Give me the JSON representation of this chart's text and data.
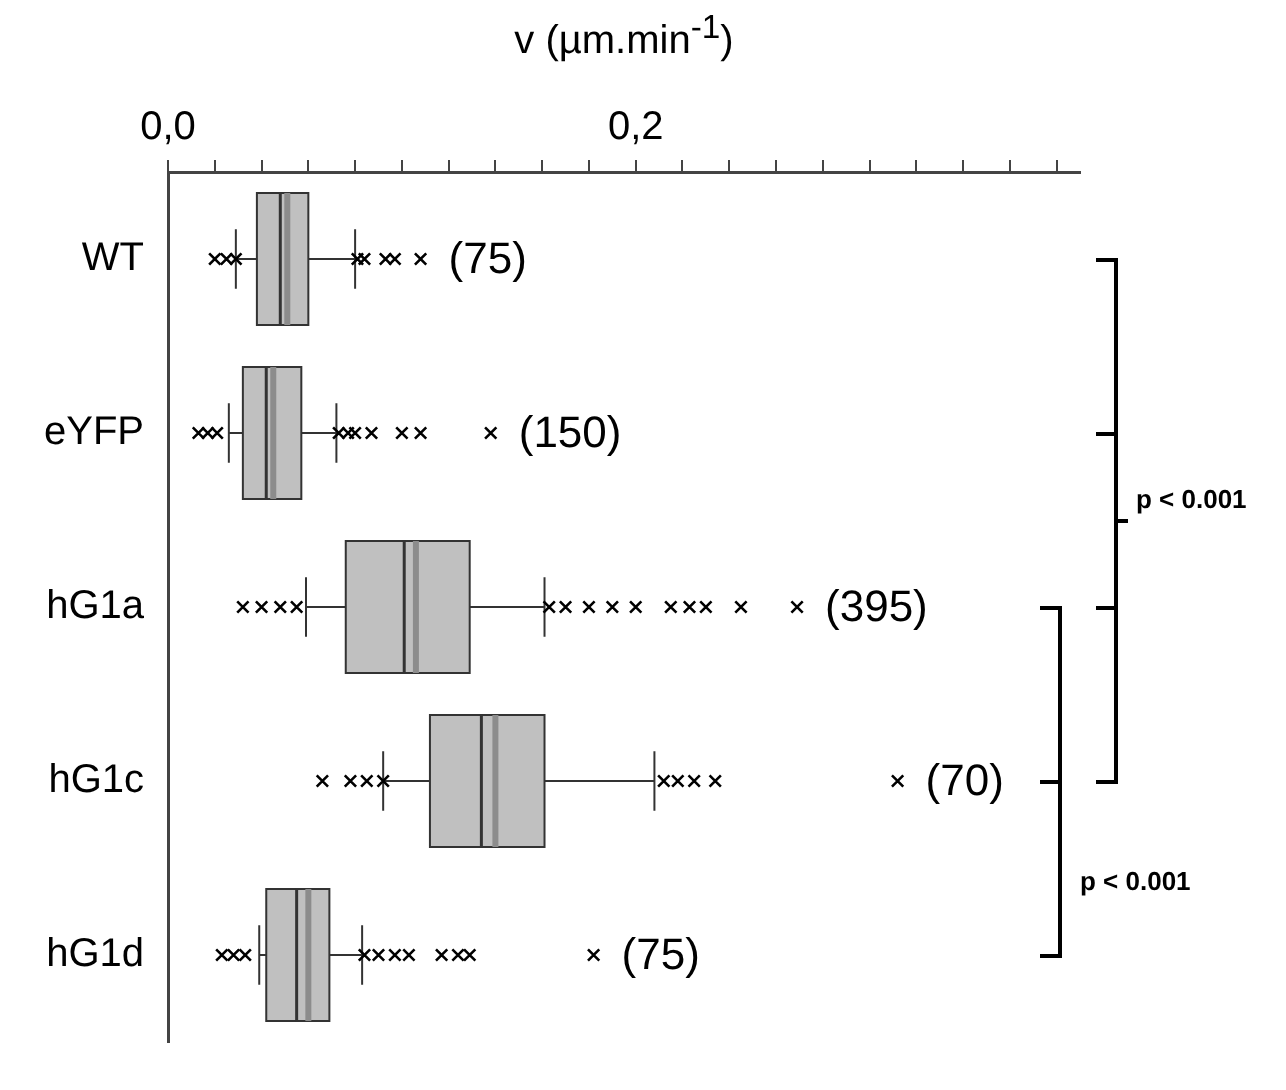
{
  "chart_data": {
    "type": "box",
    "orientation": "horizontal",
    "xlabel": "v (µm.min$^{-1}$)",
    "categories": [
      "WT",
      "eYFP",
      "hG1a",
      "hG1c",
      "hG1d"
    ],
    "color": "#c0c0c0",
    "marker": "cross",
    "grid": false,
    "legend": false,
    "xlim": [
      0,
      0.39
    ],
    "xticks": [
      {
        "value": 0,
        "label": "0,0"
      },
      {
        "value": 0.02,
        "label": null
      },
      {
        "value": 0.04,
        "label": null
      },
      {
        "value": 0.06,
        "label": null
      },
      {
        "value": 0.08,
        "label": null
      },
      {
        "value": 0.1,
        "label": null
      },
      {
        "value": 0.12,
        "label": null
      },
      {
        "value": 0.14,
        "label": null
      },
      {
        "value": 0.16,
        "label": null
      },
      {
        "value": 0.18,
        "label": null
      },
      {
        "value": 0.2,
        "label": "0,2"
      },
      {
        "value": 0.22,
        "label": null
      },
      {
        "value": 0.24,
        "label": null
      },
      {
        "value": 0.26,
        "label": null
      },
      {
        "value": 0.28,
        "label": null
      },
      {
        "value": 0.3,
        "label": null
      },
      {
        "value": 0.32,
        "label": null
      },
      {
        "value": 0.34,
        "label": null
      },
      {
        "value": 0.36,
        "label": null
      },
      {
        "value": 0.38,
        "label": null
      }
    ],
    "boxes": [
      {
        "low": 0.029,
        "q1": 0.038,
        "median": 0.048,
        "mean": 0.051,
        "q3": 0.06,
        "high": 0.08,
        "outliers": [
          0.02,
          0.025,
          0.029,
          0.081,
          0.084,
          0.093,
          0.097,
          0.108
        ]
      },
      {
        "low": 0.026,
        "q1": 0.032,
        "median": 0.042,
        "mean": 0.045,
        "q3": 0.057,
        "high": 0.072,
        "outliers": [
          0.013,
          0.017,
          0.021,
          0.073,
          0.077,
          0.08,
          0.087,
          0.1,
          0.108,
          0.138
        ]
      },
      {
        "low": 0.059,
        "q1": 0.076,
        "median": 0.101,
        "mean": 0.106,
        "q3": 0.129,
        "high": 0.161,
        "outliers": [
          0.032,
          0.04,
          0.048,
          0.055,
          0.163,
          0.17,
          0.18,
          0.19,
          0.2,
          0.215,
          0.223,
          0.23,
          0.245,
          0.269
        ]
      },
      {
        "low": 0.092,
        "q1": 0.112,
        "median": 0.134,
        "mean": 0.14,
        "q3": 0.161,
        "high": 0.208,
        "outliers": [
          0.066,
          0.078,
          0.085,
          0.092,
          0.212,
          0.218,
          0.225,
          0.234,
          0.312
        ]
      },
      {
        "low": 0.039,
        "q1": 0.042,
        "median": 0.055,
        "mean": 0.06,
        "q3": 0.069,
        "high": 0.083,
        "outliers": [
          0.023,
          0.028,
          0.033,
          0.084,
          0.09,
          0.097,
          0.103,
          0.117,
          0.124,
          0.129,
          0.182
        ]
      }
    ],
    "annotations": [
      "(75)",
      "(150)",
      "(395)",
      "(70)",
      "(75)",
      "p < 0.001",
      "p < 0.001"
    ]
  }
}
